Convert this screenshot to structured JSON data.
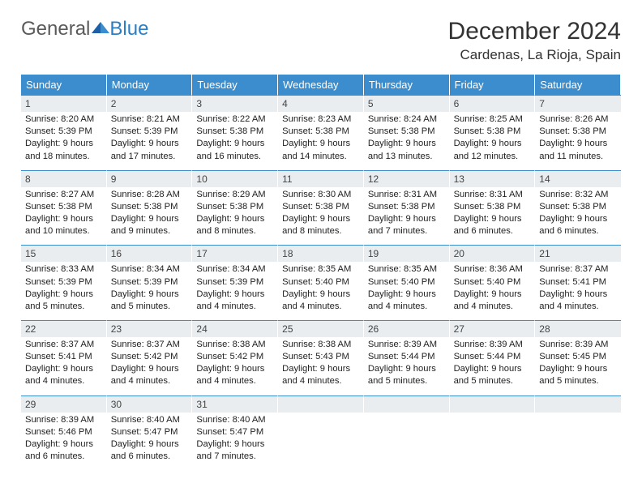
{
  "logo": {
    "general": "General",
    "blue": "Blue"
  },
  "title": "December 2024",
  "location": "Cardenas, La Rioja, Spain",
  "colors": {
    "header_bg": "#3b8dce",
    "header_text": "#ffffff",
    "daynum_bg": "#e9edf0",
    "rule": "#3b8dce",
    "logo_gray": "#5a5a5a",
    "logo_blue": "#2a7ec4"
  },
  "typography": {
    "title_fontsize": 30,
    "location_fontsize": 17,
    "dayhead_fontsize": 13,
    "cell_fontsize": 11.2,
    "logo_fontsize": 24
  },
  "weekdays": [
    "Sunday",
    "Monday",
    "Tuesday",
    "Wednesday",
    "Thursday",
    "Friday",
    "Saturday"
  ],
  "days": [
    {
      "n": "1",
      "sunrise": "Sunrise: 8:20 AM",
      "sunset": "Sunset: 5:39 PM",
      "day1": "Daylight: 9 hours",
      "day2": "and 18 minutes."
    },
    {
      "n": "2",
      "sunrise": "Sunrise: 8:21 AM",
      "sunset": "Sunset: 5:39 PM",
      "day1": "Daylight: 9 hours",
      "day2": "and 17 minutes."
    },
    {
      "n": "3",
      "sunrise": "Sunrise: 8:22 AM",
      "sunset": "Sunset: 5:38 PM",
      "day1": "Daylight: 9 hours",
      "day2": "and 16 minutes."
    },
    {
      "n": "4",
      "sunrise": "Sunrise: 8:23 AM",
      "sunset": "Sunset: 5:38 PM",
      "day1": "Daylight: 9 hours",
      "day2": "and 14 minutes."
    },
    {
      "n": "5",
      "sunrise": "Sunrise: 8:24 AM",
      "sunset": "Sunset: 5:38 PM",
      "day1": "Daylight: 9 hours",
      "day2": "and 13 minutes."
    },
    {
      "n": "6",
      "sunrise": "Sunrise: 8:25 AM",
      "sunset": "Sunset: 5:38 PM",
      "day1": "Daylight: 9 hours",
      "day2": "and 12 minutes."
    },
    {
      "n": "7",
      "sunrise": "Sunrise: 8:26 AM",
      "sunset": "Sunset: 5:38 PM",
      "day1": "Daylight: 9 hours",
      "day2": "and 11 minutes."
    },
    {
      "n": "8",
      "sunrise": "Sunrise: 8:27 AM",
      "sunset": "Sunset: 5:38 PM",
      "day1": "Daylight: 9 hours",
      "day2": "and 10 minutes."
    },
    {
      "n": "9",
      "sunrise": "Sunrise: 8:28 AM",
      "sunset": "Sunset: 5:38 PM",
      "day1": "Daylight: 9 hours",
      "day2": "and 9 minutes."
    },
    {
      "n": "10",
      "sunrise": "Sunrise: 8:29 AM",
      "sunset": "Sunset: 5:38 PM",
      "day1": "Daylight: 9 hours",
      "day2": "and 8 minutes."
    },
    {
      "n": "11",
      "sunrise": "Sunrise: 8:30 AM",
      "sunset": "Sunset: 5:38 PM",
      "day1": "Daylight: 9 hours",
      "day2": "and 8 minutes."
    },
    {
      "n": "12",
      "sunrise": "Sunrise: 8:31 AM",
      "sunset": "Sunset: 5:38 PM",
      "day1": "Daylight: 9 hours",
      "day2": "and 7 minutes."
    },
    {
      "n": "13",
      "sunrise": "Sunrise: 8:31 AM",
      "sunset": "Sunset: 5:38 PM",
      "day1": "Daylight: 9 hours",
      "day2": "and 6 minutes."
    },
    {
      "n": "14",
      "sunrise": "Sunrise: 8:32 AM",
      "sunset": "Sunset: 5:38 PM",
      "day1": "Daylight: 9 hours",
      "day2": "and 6 minutes."
    },
    {
      "n": "15",
      "sunrise": "Sunrise: 8:33 AM",
      "sunset": "Sunset: 5:39 PM",
      "day1": "Daylight: 9 hours",
      "day2": "and 5 minutes."
    },
    {
      "n": "16",
      "sunrise": "Sunrise: 8:34 AM",
      "sunset": "Sunset: 5:39 PM",
      "day1": "Daylight: 9 hours",
      "day2": "and 5 minutes."
    },
    {
      "n": "17",
      "sunrise": "Sunrise: 8:34 AM",
      "sunset": "Sunset: 5:39 PM",
      "day1": "Daylight: 9 hours",
      "day2": "and 4 minutes."
    },
    {
      "n": "18",
      "sunrise": "Sunrise: 8:35 AM",
      "sunset": "Sunset: 5:40 PM",
      "day1": "Daylight: 9 hours",
      "day2": "and 4 minutes."
    },
    {
      "n": "19",
      "sunrise": "Sunrise: 8:35 AM",
      "sunset": "Sunset: 5:40 PM",
      "day1": "Daylight: 9 hours",
      "day2": "and 4 minutes."
    },
    {
      "n": "20",
      "sunrise": "Sunrise: 8:36 AM",
      "sunset": "Sunset: 5:40 PM",
      "day1": "Daylight: 9 hours",
      "day2": "and 4 minutes."
    },
    {
      "n": "21",
      "sunrise": "Sunrise: 8:37 AM",
      "sunset": "Sunset: 5:41 PM",
      "day1": "Daylight: 9 hours",
      "day2": "and 4 minutes."
    },
    {
      "n": "22",
      "sunrise": "Sunrise: 8:37 AM",
      "sunset": "Sunset: 5:41 PM",
      "day1": "Daylight: 9 hours",
      "day2": "and 4 minutes."
    },
    {
      "n": "23",
      "sunrise": "Sunrise: 8:37 AM",
      "sunset": "Sunset: 5:42 PM",
      "day1": "Daylight: 9 hours",
      "day2": "and 4 minutes."
    },
    {
      "n": "24",
      "sunrise": "Sunrise: 8:38 AM",
      "sunset": "Sunset: 5:42 PM",
      "day1": "Daylight: 9 hours",
      "day2": "and 4 minutes."
    },
    {
      "n": "25",
      "sunrise": "Sunrise: 8:38 AM",
      "sunset": "Sunset: 5:43 PM",
      "day1": "Daylight: 9 hours",
      "day2": "and 4 minutes."
    },
    {
      "n": "26",
      "sunrise": "Sunrise: 8:39 AM",
      "sunset": "Sunset: 5:44 PM",
      "day1": "Daylight: 9 hours",
      "day2": "and 5 minutes."
    },
    {
      "n": "27",
      "sunrise": "Sunrise: 8:39 AM",
      "sunset": "Sunset: 5:44 PM",
      "day1": "Daylight: 9 hours",
      "day2": "and 5 minutes."
    },
    {
      "n": "28",
      "sunrise": "Sunrise: 8:39 AM",
      "sunset": "Sunset: 5:45 PM",
      "day1": "Daylight: 9 hours",
      "day2": "and 5 minutes."
    },
    {
      "n": "29",
      "sunrise": "Sunrise: 8:39 AM",
      "sunset": "Sunset: 5:46 PM",
      "day1": "Daylight: 9 hours",
      "day2": "and 6 minutes."
    },
    {
      "n": "30",
      "sunrise": "Sunrise: 8:40 AM",
      "sunset": "Sunset: 5:47 PM",
      "day1": "Daylight: 9 hours",
      "day2": "and 6 minutes."
    },
    {
      "n": "31",
      "sunrise": "Sunrise: 8:40 AM",
      "sunset": "Sunset: 5:47 PM",
      "day1": "Daylight: 9 hours",
      "day2": "and 7 minutes."
    }
  ]
}
